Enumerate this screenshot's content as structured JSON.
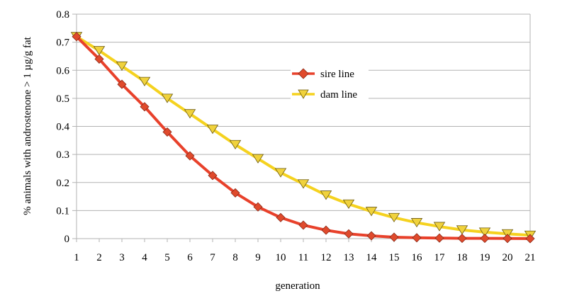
{
  "chart_data": {
    "type": "line",
    "xlabel": "generation",
    "ylabel": "% animals with androstenone > 1 µg/g fat",
    "ylim": [
      0,
      0.8
    ],
    "xlim": [
      1,
      21
    ],
    "yticks": [
      "0",
      "0.1",
      "0.2",
      "0.3",
      "0.4",
      "0.5",
      "0.6",
      "0.7",
      "0.8"
    ],
    "x": [
      1,
      2,
      3,
      4,
      5,
      6,
      7,
      8,
      9,
      10,
      11,
      12,
      13,
      14,
      15,
      16,
      17,
      18,
      19,
      20,
      21
    ],
    "grid": "horizontal",
    "legend_position": "center-right",
    "series": [
      {
        "name": "sire line",
        "color": "#e8412b",
        "marker": "diamond",
        "marker_fill": "#e04a2c",
        "values": [
          0.72,
          0.64,
          0.55,
          0.47,
          0.38,
          0.295,
          0.225,
          0.163,
          0.113,
          0.075,
          0.048,
          0.03,
          0.017,
          0.01,
          0.005,
          0.003,
          0.002,
          0.001,
          0.001,
          0.0005,
          0.0
        ]
      },
      {
        "name": "dam line",
        "color": "#f5d21f",
        "marker": "triangle-down",
        "marker_fill": "#f0d23c",
        "values": [
          0.72,
          0.67,
          0.615,
          0.56,
          0.5,
          0.445,
          0.39,
          0.335,
          0.285,
          0.235,
          0.195,
          0.155,
          0.123,
          0.097,
          0.075,
          0.057,
          0.043,
          0.031,
          0.023,
          0.017,
          0.012
        ]
      }
    ]
  }
}
